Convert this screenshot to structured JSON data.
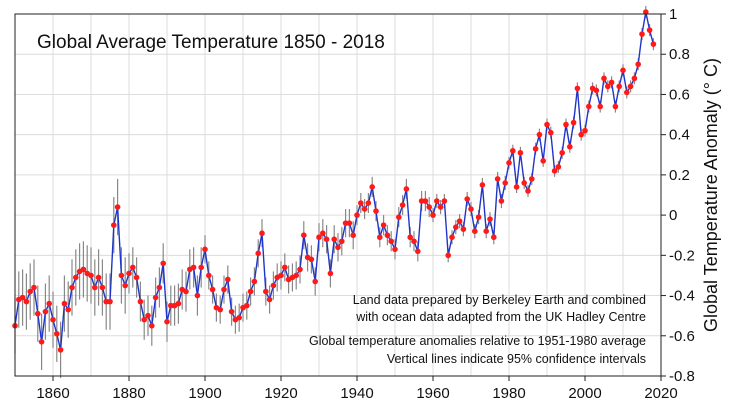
{
  "chart_data": {
    "type": "line",
    "title": "Global Average Temperature 1850 - 2018",
    "ylabel": "Global Temperature Anomaly (° C)",
    "xlabel": "",
    "xlim": [
      1850,
      2020
    ],
    "ylim": [
      -0.8,
      1.0
    ],
    "x_ticks": [
      1860,
      1880,
      1900,
      1920,
      1940,
      1960,
      1980,
      2000,
      2020
    ],
    "y_ticks": [
      -0.8,
      -0.6,
      -0.4,
      -0.2,
      0,
      0.2,
      0.4,
      0.6,
      0.8,
      1
    ],
    "y_axis_side": "right",
    "grid": true,
    "line_color": "#1f35c8",
    "marker_color": "#ff1a1a",
    "errorbar_color": "#888888",
    "notes": [
      "Land data prepared by Berkeley Earth and combined",
      "with ocean data adapted from the UK Hadley Centre",
      "Global temperature anomalies relative to 1951-1980 average",
      "Vertical lines indicate 95% confidence intervals"
    ],
    "series": [
      {
        "x": [
          1850,
          1851,
          1852,
          1853,
          1854,
          1855,
          1856,
          1857,
          1858,
          1859,
          1860,
          1861,
          1862,
          1863,
          1864,
          1865,
          1866,
          1867,
          1868,
          1869,
          1870,
          1871,
          1872,
          1873,
          1874,
          1875,
          1876,
          1877,
          1878,
          1879,
          1880,
          1881,
          1882,
          1883,
          1884,
          1885,
          1886,
          1887,
          1888,
          1889,
          1890,
          1891,
          1892,
          1893,
          1894,
          1895,
          1896,
          1897,
          1898,
          1899,
          1900,
          1901,
          1902,
          1903,
          1904,
          1905,
          1906,
          1907,
          1908,
          1909,
          1910,
          1911,
          1912,
          1913,
          1914,
          1915,
          1916,
          1917,
          1918,
          1919,
          1920,
          1921,
          1922,
          1923,
          1924,
          1925,
          1926,
          1927,
          1928,
          1929,
          1930,
          1931,
          1932,
          1933,
          1934,
          1935,
          1936,
          1937,
          1938,
          1939,
          1940,
          1941,
          1942,
          1943,
          1944,
          1945,
          1946,
          1947,
          1948,
          1949,
          1950,
          1951,
          1952,
          1953,
          1954,
          1955,
          1956,
          1957,
          1958,
          1959,
          1960,
          1961,
          1962,
          1963,
          1964,
          1965,
          1966,
          1967,
          1968,
          1969,
          1970,
          1971,
          1972,
          1973,
          1974,
          1975,
          1976,
          1977,
          1978,
          1979,
          1980,
          1981,
          1982,
          1983,
          1984,
          1985,
          1986,
          1987,
          1988,
          1989,
          1990,
          1991,
          1992,
          1993,
          1994,
          1995,
          1996,
          1997,
          1998,
          1999,
          2000,
          2001,
          2002,
          2003,
          2004,
          2005,
          2006,
          2007,
          2008,
          2009,
          2010,
          2011,
          2012,
          2013,
          2014,
          2015,
          2016,
          2017,
          2018
        ],
        "values": [
          -0.55,
          -0.42,
          -0.41,
          -0.43,
          -0.38,
          -0.36,
          -0.49,
          -0.63,
          -0.48,
          -0.44,
          -0.52,
          -0.59,
          -0.67,
          -0.44,
          -0.47,
          -0.36,
          -0.31,
          -0.28,
          -0.27,
          -0.29,
          -0.3,
          -0.36,
          -0.31,
          -0.36,
          -0.43,
          -0.43,
          -0.05,
          0.04,
          -0.3,
          -0.35,
          -0.29,
          -0.26,
          -0.31,
          -0.43,
          -0.52,
          -0.5,
          -0.55,
          -0.41,
          -0.36,
          -0.24,
          -0.53,
          -0.45,
          -0.45,
          -0.44,
          -0.37,
          -0.38,
          -0.27,
          -0.26,
          -0.4,
          -0.26,
          -0.17,
          -0.3,
          -0.37,
          -0.46,
          -0.47,
          -0.37,
          -0.32,
          -0.48,
          -0.52,
          -0.51,
          -0.46,
          -0.45,
          -0.38,
          -0.33,
          -0.19,
          -0.09,
          -0.38,
          -0.42,
          -0.35,
          -0.31,
          -0.3,
          -0.26,
          -0.32,
          -0.31,
          -0.3,
          -0.27,
          -0.1,
          -0.21,
          -0.22,
          -0.33,
          -0.11,
          -0.09,
          -0.12,
          -0.29,
          -0.12,
          -0.16,
          -0.13,
          -0.04,
          -0.04,
          -0.1,
          0.0,
          0.06,
          0.03,
          0.06,
          0.14,
          0.02,
          -0.11,
          -0.05,
          -0.1,
          -0.13,
          -0.17,
          -0.01,
          0.05,
          0.13,
          -0.11,
          -0.13,
          -0.18,
          0.07,
          0.07,
          0.04,
          0.0,
          0.07,
          0.04,
          0.07,
          -0.2,
          -0.11,
          -0.06,
          -0.03,
          -0.07,
          0.08,
          0.03,
          -0.08,
          -0.01,
          0.15,
          -0.08,
          -0.02,
          -0.11,
          0.18,
          0.07,
          0.16,
          0.26,
          0.32,
          0.14,
          0.31,
          0.16,
          0.12,
          0.18,
          0.33,
          0.4,
          0.27,
          0.45,
          0.41,
          0.22,
          0.24,
          0.31,
          0.45,
          0.34,
          0.46,
          0.63,
          0.4,
          0.42,
          0.54,
          0.63,
          0.62,
          0.54,
          0.68,
          0.64,
          0.66,
          0.54,
          0.64,
          0.72,
          0.61,
          0.64,
          0.68,
          0.75,
          0.9,
          1.01,
          0.92,
          0.85
        ]
      }
    ]
  }
}
